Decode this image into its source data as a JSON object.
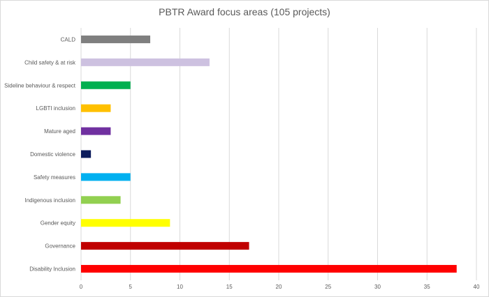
{
  "chart_data": {
    "type": "bar",
    "orientation": "horizontal",
    "title": "PBTR Award focus areas (105 projects)",
    "xlabel": "",
    "ylabel": "",
    "xlim": [
      0,
      40
    ],
    "xticks": [
      0,
      5,
      10,
      15,
      20,
      25,
      30,
      35,
      40
    ],
    "grid": "vertical",
    "legend": "none",
    "categories": [
      "CALD",
      "Child safety & at risk",
      "Sideline behaviour & respect",
      "LGBTI inclusion",
      "Mature aged",
      "Domestic violence",
      "Safety measures",
      "Indigenous inclusion",
      "Gender equity",
      "Governance",
      "Disability Inclusion"
    ],
    "values": [
      7,
      13,
      5,
      3,
      3,
      1,
      5,
      4,
      9,
      17,
      38
    ],
    "colors": [
      "#7f7f7f",
      "#cdc1e0",
      "#00b050",
      "#ffc000",
      "#7030a0",
      "#0c1c5c",
      "#00b0f0",
      "#92d050",
      "#ffff00",
      "#c00000",
      "#ff0000"
    ]
  }
}
